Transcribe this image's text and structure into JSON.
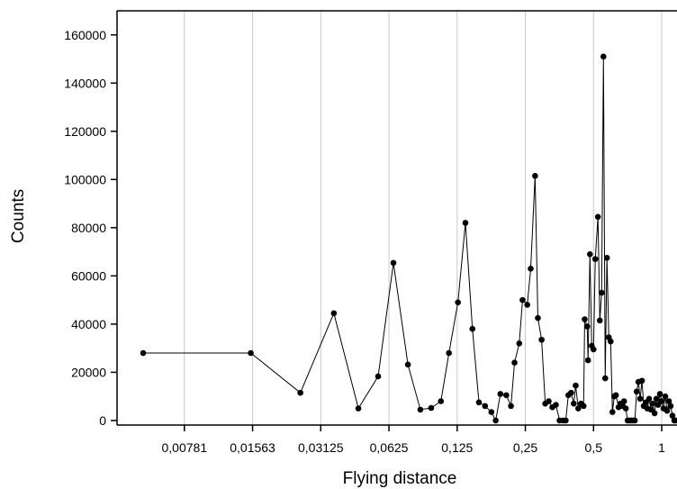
{
  "chart_data": {
    "type": "line",
    "x_label": "Flying distance",
    "y_label": "Counts",
    "x_scale": "log2",
    "grid": true,
    "marker": "circle",
    "xlim": [
      0.00394,
      1.168
    ],
    "ylim": [
      -1900,
      170000
    ],
    "xticks": [
      {
        "value": 0.0078125,
        "label": "0,00781"
      },
      {
        "value": 0.015625,
        "label": "0,01563"
      },
      {
        "value": 0.03125,
        "label": "0,03125"
      },
      {
        "value": 0.0625,
        "label": "0,0625"
      },
      {
        "value": 0.125,
        "label": "0,125"
      },
      {
        "value": 0.25,
        "label": "0,25"
      },
      {
        "value": 0.5,
        "label": "0,5"
      },
      1
    ],
    "yticks": [
      0,
      20000,
      40000,
      60000,
      80000,
      100000,
      120000,
      140000,
      160000
    ],
    "series": [
      {
        "color": "#000000",
        "x": [
          0.00514,
          0.01535,
          0.0254,
          0.0357,
          0.0458,
          0.056,
          0.0654,
          0.0758,
          0.086,
          0.096,
          0.106,
          0.115,
          0.126,
          0.136,
          0.146,
          0.156,
          0.166,
          0.177,
          0.185,
          0.194,
          0.206,
          0.216,
          0.224,
          0.235,
          0.243,
          0.255,
          0.264,
          0.276,
          0.284,
          0.295,
          0.306,
          0.317,
          0.329,
          0.341,
          0.354,
          0.367,
          0.377,
          0.387,
          0.398,
          0.409,
          0.417,
          0.428,
          0.44,
          0.452,
          0.457,
          0.469,
          0.473,
          0.482,
          0.491,
          0.5,
          0.509,
          0.523,
          0.533,
          0.543,
          0.553,
          0.563,
          0.573,
          0.584,
          0.595,
          0.606,
          0.617,
          0.628,
          0.645,
          0.657,
          0.669,
          0.682,
          0.694,
          0.707,
          0.72,
          0.734,
          0.747,
          0.761,
          0.775,
          0.789,
          0.803,
          0.818,
          0.833,
          0.849,
          0.864,
          0.88,
          0.896,
          0.913,
          0.93,
          0.947,
          0.964,
          0.982,
          1.0,
          1.018,
          1.037,
          1.056,
          1.076,
          1.095,
          1.115,
          1.136,
          1.157
        ],
        "values": [
          28000,
          28000,
          11500,
          44500,
          5000,
          18300,
          65400,
          23200,
          4500,
          5200,
          8000,
          28000,
          49000,
          82000,
          38000,
          7500,
          6000,
          3500,
          0,
          11000,
          10500,
          6000,
          24000,
          32000,
          50000,
          48000,
          63000,
          101500,
          42500,
          33500,
          7000,
          8000,
          5500,
          6500,
          0,
          0,
          0,
          10500,
          11500,
          7000,
          14500,
          5000,
          7000,
          6000,
          42000,
          39000,
          25000,
          69000,
          31000,
          29500,
          67000,
          84500,
          41500,
          53000,
          151000,
          17500,
          67500,
          34500,
          32800,
          3500,
          10000,
          10500,
          5500,
          7000,
          6000,
          8000,
          5000,
          0,
          0,
          0,
          0,
          0,
          12000,
          16000,
          9000,
          16500,
          6000,
          7500,
          5000,
          9000,
          4500,
          7000,
          3000,
          9000,
          6500,
          11000,
          8000,
          5000,
          10000,
          4000,
          8000,
          6000,
          2000,
          0,
          0
        ]
      }
    ]
  }
}
